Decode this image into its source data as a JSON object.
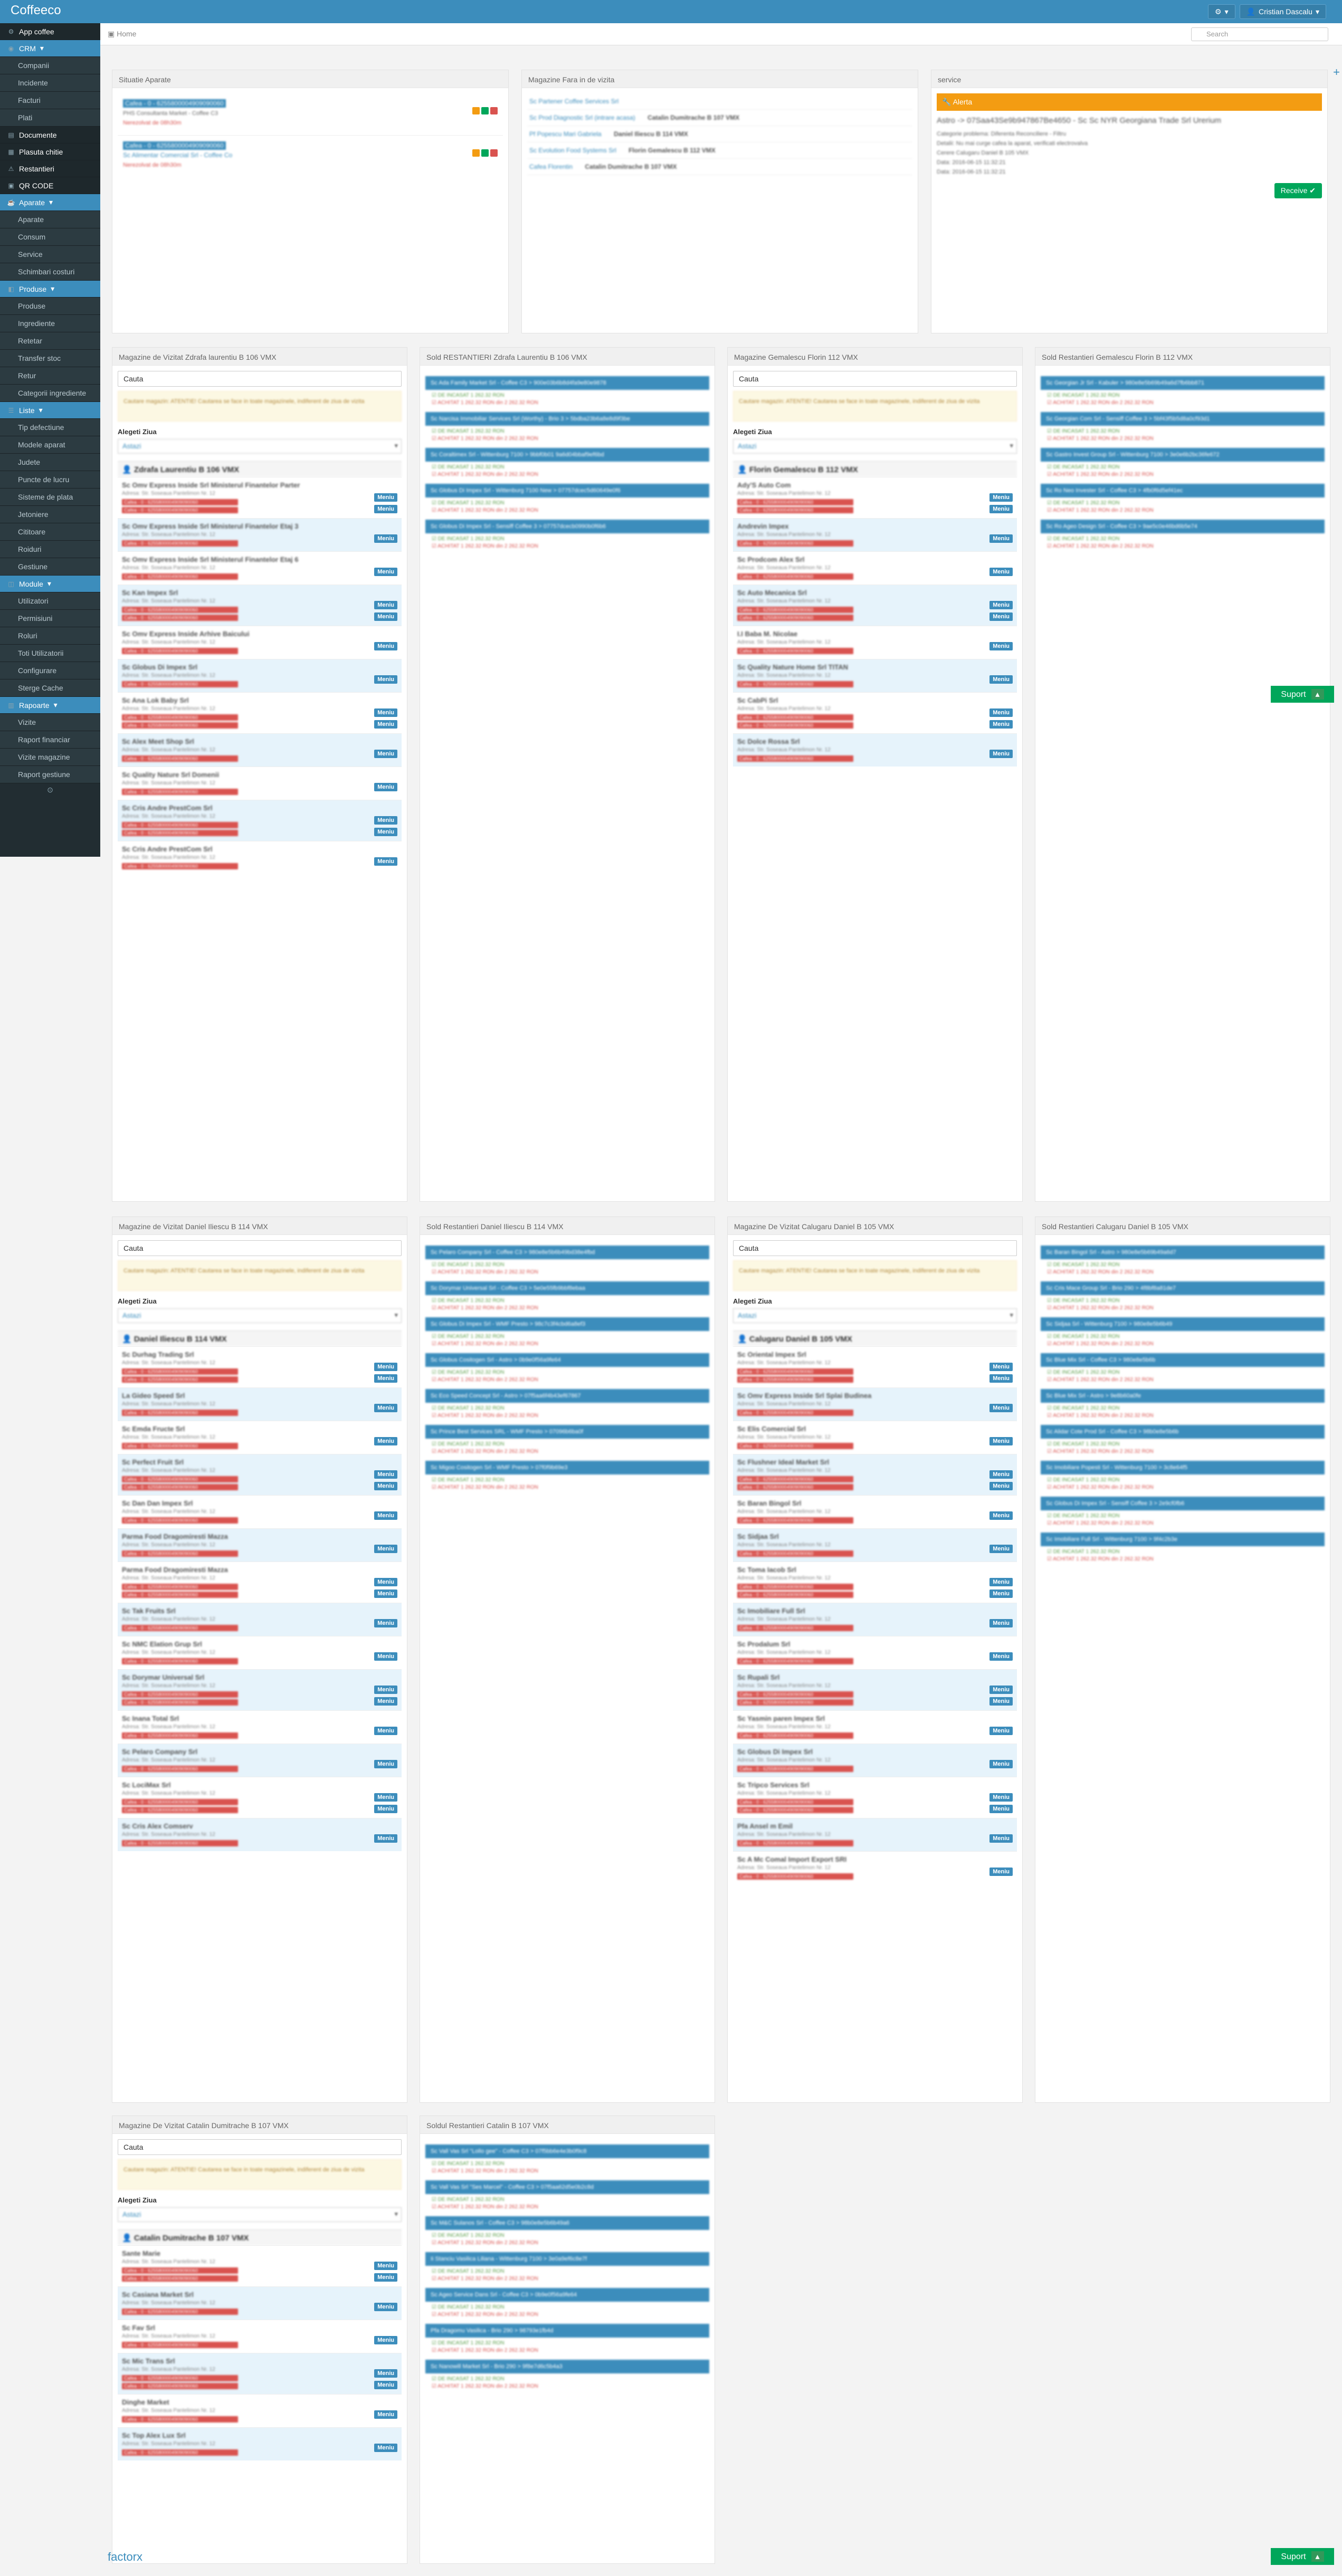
{
  "app": {
    "brand": "Coffeeco",
    "user": "Cristian Dascalu",
    "crumb": "Home",
    "search_placeholder": "Search",
    "footer": "factorx"
  },
  "sidebar": [
    {
      "label": "App coffee",
      "type": "main",
      "icon": "gear-icon"
    },
    {
      "label": "CRM",
      "type": "active",
      "icon": "crm-icon"
    },
    {
      "label": "Companii",
      "type": "sub"
    },
    {
      "label": "Incidente",
      "type": "sub"
    },
    {
      "label": "Facturi",
      "type": "sub"
    },
    {
      "label": "Plati",
      "type": "sub"
    },
    {
      "label": "Documente",
      "type": "main",
      "icon": "document-icon"
    },
    {
      "label": "Plasuta chitie",
      "type": "main",
      "icon": "receipt-icon"
    },
    {
      "label": "Restantieri",
      "type": "main",
      "icon": "alert-icon"
    },
    {
      "label": "QR CODE",
      "type": "main",
      "icon": "qr-icon"
    },
    {
      "label": "Aparate",
      "type": "active",
      "icon": "machine-icon"
    },
    {
      "label": "Aparate",
      "type": "sub"
    },
    {
      "label": "Consum",
      "type": "sub"
    },
    {
      "label": "Service",
      "type": "sub"
    },
    {
      "label": "Schimbari costuri",
      "type": "sub"
    },
    {
      "label": "Produse",
      "type": "active",
      "icon": "product-icon"
    },
    {
      "label": "Produse",
      "type": "sub"
    },
    {
      "label": "Ingrediente",
      "type": "sub"
    },
    {
      "label": "Retetar",
      "type": "sub"
    },
    {
      "label": "Transfer stoc",
      "type": "sub"
    },
    {
      "label": "Retur",
      "type": "sub"
    },
    {
      "label": "Categorii ingrediente",
      "type": "sub"
    },
    {
      "label": "Liste",
      "type": "active",
      "icon": "list-icon"
    },
    {
      "label": "Tip defectiune",
      "type": "sub"
    },
    {
      "label": "Modele aparat",
      "type": "sub"
    },
    {
      "label": "Judete",
      "type": "sub"
    },
    {
      "label": "Puncte de lucru",
      "type": "sub"
    },
    {
      "label": "Sisteme de plata",
      "type": "sub"
    },
    {
      "label": "Jetoniere",
      "type": "sub"
    },
    {
      "label": "Cititoare",
      "type": "sub"
    },
    {
      "label": "Roiduri",
      "type": "sub"
    },
    {
      "label": "Gestiune",
      "type": "sub"
    },
    {
      "label": "Module",
      "type": "active",
      "icon": "module-icon"
    },
    {
      "label": "Utilizatori",
      "type": "sub"
    },
    {
      "label": "Permisiuni",
      "type": "sub"
    },
    {
      "label": "Roluri",
      "type": "sub"
    },
    {
      "label": "Toti Utilizatorii",
      "type": "sub"
    },
    {
      "label": "Configurare",
      "type": "sub"
    },
    {
      "label": "Sterge Cache",
      "type": "sub"
    },
    {
      "label": "Rapoarte",
      "type": "active",
      "icon": "report-icon"
    },
    {
      "label": "Vizite",
      "type": "sub"
    },
    {
      "label": "Raport financiar",
      "type": "sub"
    },
    {
      "label": "Vizite magazine",
      "type": "sub"
    },
    {
      "label": "Raport gestiune",
      "type": "sub"
    }
  ],
  "top_panels": {
    "p1": "Situatie Aparate",
    "p2": "Magazine Fara in de vizita",
    "p3": "service",
    "alert": "Alerta",
    "service_title": "Astro -> 07Saa43Se9b947867Be4650 - Sc Sc NYR Georgiana Trade Srl Urerium",
    "receive": "Receive",
    "p1_rows": [
      "Cafea - 0 - 6255800004909090060",
      "Sc Alimentar Comercial Srl - Coffee Co"
    ],
    "p2_rows": [
      "Sc Partener Coffee Services Srl",
      "Sc Prod Diagnostic Srl (intrare acasa)",
      "Pf Popescu Mari Gabriela",
      "Sc Evolution Food Systems Srl",
      "Cafea Florentin"
    ],
    "p2_vals": [
      "Catalin Dumitrache B 107 VMX",
      "Daniel Iliescu B 114 VMX",
      "Florin Gemalescu B 112 VMX",
      "Catalin Dumitrache B 107 VMX"
    ]
  },
  "panels": {
    "a": "Magazine de Vizitat Zdrafa laurentiu B 106 VMX",
    "b": "Sold RESTANTIERI Zdrafa Laurentiu B 106 VMX",
    "c": "Magazine Gemalescu Florin 112 VMX",
    "d": "Sold Restantieri Gemalescu Florin B 112 VMX",
    "e": "Magazine de Vizitat Daniel Iliescu B 114 VMX",
    "f": "Sold Restantieri Daniel Iliescu B 114 VMX",
    "g": "Magazine De Vizitat Calugaru Daniel B 105 VMX",
    "h": "Sold Restantieri Calugaru Daniel B 105 VMX",
    "i": "Magazine De Vizitat Catalin Dumitrache B 107 VMX",
    "j": "Soldul Restantieri Catalin B 107 VMX"
  },
  "common": {
    "cauta": "Cauta",
    "alege": "Alegeti Ziua",
    "astazi": "Astazi",
    "meniu": "Meniu",
    "warn": "Cautare magazin: ATENTIE! Cautarea se face in toate magazinele, indiferent de ziua de vizita",
    "suport": "Suport"
  },
  "sections": {
    "a": "Zdrafa Laurentiu B 106 VMX",
    "c": "Florin Gemalescu B 112 VMX",
    "e": "Daniel Iliescu B 114 VMX",
    "g": "Calugaru Daniel B 105 VMX",
    "i": "Catalin Dumitrache B 107 VMX"
  },
  "lists": {
    "a": [
      "Sc Omv Express Inside Srl Ministerul Finantelor Parter",
      "Sc Omv Express Inside Srl Ministerul Finantelor Etaj 3",
      "Sc Omv Express Inside Srl Ministerul Finantelor Etaj 6",
      "Sc Kan Impex Srl",
      "Sc Omv Express Inside Arhive Baicului",
      "Sc Globus Di Impex Srl",
      "Sc Ana Lok Baby Srl",
      "Sc Alex Meet Shop Srl",
      "Sc Quality Nature Srl Domenii",
      "Sc Cris Andre PrestCom Srl",
      "Sc Cris Andre PrestCom Srl"
    ],
    "c": [
      "Ady'S Auto Com",
      "Andrevin Impex",
      "Sc Prodcom Alex Srl",
      "Sc Auto Mecanica Srl",
      "I.I Baba M. Nicolae",
      "Sc Quality Nature Home Srl TITAN",
      "Sc CabPi Srl",
      "Sc Dolce Rossa Srl"
    ],
    "e": [
      "Sc Durhag Trading Srl",
      "La Gideo Speed Srl",
      "Sc Emda Fructe Srl",
      "Sc Perfect Fruit Srl",
      "Sc Dan Dan Impex Srl",
      "Parma Food Dragomiresti Mazza",
      "Parma Food Dragomiresti Mazza",
      "Sc Tak Fruits Srl",
      "Sc NMC Elation Grup Srl",
      "Sc Dorymar Universal Srl",
      "Sc Inana Total Srl",
      "Sc Pelaro Company Srl",
      "Sc LociMax Srl",
      "Sc Cris Alex Comserv"
    ],
    "g": [
      "Sc Oriental Impex Srl",
      "Sc Omv Express Inside Srl Splai Budinea",
      "Sc Elis Comercial Srl",
      "Sc Flushner Ideal Market Srl",
      "Sc Baran Bingol Srl",
      "Sc Sidjaa Srl",
      "Sc Toma Iacob Srl",
      "Sc Imobiliare Full Srl",
      "Sc Prodalum Srl",
      "Sc Rupali Srl",
      "Sc Yasmin paren Impex Srl",
      "Sc Globus Di Impex Srl",
      "Sc Tripco Services Srl",
      "Pfa Ansel m Emil",
      "Sc A Mc Comal Import Export SRI"
    ],
    "i": [
      "Sante Marie",
      "Sc Casiana Market Srl",
      "Sc Fav Srl",
      "Sc Mic Trans Srl",
      "Dinghe Market",
      "Sc Top Alex Lux Srl"
    ]
  },
  "blues": {
    "b": [
      "Sc Ada Family Market Srl - Coffee C3 > 900e03b6b8d4fa9e80e9878",
      "Sc Narcisa Immobiliar Services Srl (Worthy) - Brio 3 > 5bdba23b6a8e8d9f3be",
      "Sc Coraltimex Srl - Wittenburg 7100 > 9bbf0b01 9a6d04bbaf9ef6bd",
      "Sc Globus Di Impex Srl - Wittenburg 7100 New > 07757dcec5d60649e0f6",
      "Sc Globus Di Impex Srl - Sensiff Coffee 3 > 07757dcecb0990b0f6b6"
    ],
    "d": [
      "Sc Georgian Jr Srl - Kabuler > 980e8e5b69b49a6d7fb6bb871",
      "Sc Georgian Com Srl - Sensiff Coffee 3 > 5bf43f5b5d8a0cf93d1",
      "Sc Gastro Invest Group Srl - Wittenburg 7100 > 3e0e6b2bc36fe672",
      "Sc Ro Neo Invester Srl - Coffee C3 > 4fb0f6d5ef41ec",
      "Sc Ro Ageo Design Srl - Coffee C3 > 9ae5c0e46bd6b5e74"
    ],
    "f": [
      "Sc Pelaro Company Srl - Coffee C3 > 980e8e5b6b49bd38e4fbd",
      "Sc Dorymar Universal Srl - Coffee C3 > 5e0e55fb9bbf8ebaa",
      "Sc Globus Di Impex Srl - WMF Presto > 98c7c3f4cbd6a8ef3",
      "Sc Globus Cositogen Srl - Astro > 0b9e0f56a9fe64",
      "Sc Eco Speed Concept Srl - Astro > 07f5aa6f4b43ef67867",
      "Sc Prince Best Services SRL - WMF Presto > 07096b6ba0f",
      "Sc Migoo Cositogen Srl - WMF Presto > 07f0f9b69e3"
    ],
    "h": [
      "Sc Baran Bingol Srl - Astro > 980e8e5b69b49a6d7",
      "Sc Cris Mace Group Srl - Brio 290 > 4f8bf8a81de7",
      "Sc Sidjaa Srl - Wittenburg 7100 > 980e8e5b6b49",
      "Sc Blue Mix Srl - Coffee C3 > 980e8e5b6b",
      "Sc Blue Mix Srl - Astro > 9e8b60a0fe",
      "Sc Alidar Cote Prod Srl - Coffee C3 > 98b0e8e5b6b",
      "Sc Imobiliare Popesti Srl - Wittenburg 7100 > 3c8e64f5",
      "Sc Globus Di Impex Srl - Sensiff Coffee 3 > 2e9cf0fb6",
      "Sc Imobiliare Full Srl - Wittenburg 7100 > 9f4c2b3e"
    ],
    "j": [
      "Sc Vall Vas Srl \"Lollo gee\" - Coffee C3 > 07f5bb6e4e3b0f9c8",
      "Sc Vall Vas Srl \"Ses Marcel\" - Coffee C3 > 07f5aa62d5e0b2c8d",
      "Sc M&C Sulanos Srl - Coffee C3 > 98b0e8e5b6b49a6",
      "Ii Stanciu Vasilica Liliana - Wittenburg 7100 > 3e0a9ef6c8e7f",
      "Sc Ageo Service Dans Srl - Coffee C3 > 0b9e0f56a9fe64",
      "Pfa Dragomu Vasilica - Brio 290 > 98793e1fb4d",
      "Sc Nanowill Market Srl - Brio 290 > 9f8e7d6c5b4a3"
    ]
  }
}
